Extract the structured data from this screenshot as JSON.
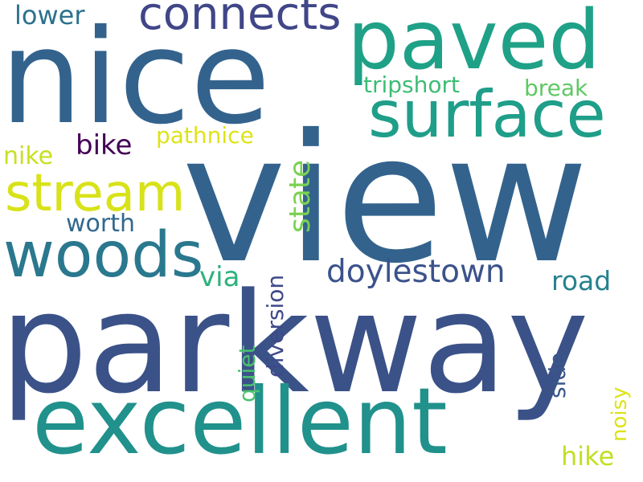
{
  "background": "#ffffff",
  "words": [
    {
      "text": "view",
      "color": "#33638d",
      "orientation": "horizontal"
    },
    {
      "text": "parkway",
      "color": "#3b5288",
      "orientation": "horizontal"
    },
    {
      "text": "nice",
      "color": "#33638d",
      "orientation": "horizontal"
    },
    {
      "text": "excellent",
      "color": "#21918c",
      "orientation": "horizontal"
    },
    {
      "text": "paved",
      "color": "#1fa187",
      "orientation": "horizontal"
    },
    {
      "text": "surface",
      "color": "#1f9e89",
      "orientation": "horizontal"
    },
    {
      "text": "woods",
      "color": "#2a788e",
      "orientation": "horizontal"
    },
    {
      "text": "stream",
      "color": "#d8e219",
      "orientation": "horizontal"
    },
    {
      "text": "connects",
      "color": "#404688",
      "orientation": "horizontal"
    },
    {
      "text": "doylestown",
      "color": "#3b528b",
      "orientation": "horizontal"
    },
    {
      "text": "bike",
      "color": "#440154",
      "orientation": "horizontal"
    },
    {
      "text": "lower",
      "color": "#2c728e",
      "orientation": "horizontal"
    },
    {
      "text": "road",
      "color": "#26828e",
      "orientation": "horizontal"
    },
    {
      "text": "hike",
      "color": "#c2df23",
      "orientation": "horizontal"
    },
    {
      "text": "via",
      "color": "#2db27d",
      "orientation": "horizontal"
    },
    {
      "text": "nike",
      "color": "#c8e020",
      "orientation": "horizontal"
    },
    {
      "text": "worth",
      "color": "#31688e",
      "orientation": "horizontal"
    },
    {
      "text": "pathnice",
      "color": "#dde318",
      "orientation": "horizontal"
    },
    {
      "text": "tripshort",
      "color": "#3dbc74",
      "orientation": "horizontal"
    },
    {
      "text": "break",
      "color": "#5ec962",
      "orientation": "horizontal"
    },
    {
      "text": "state",
      "color": "#7ad151",
      "orientation": "vertical"
    },
    {
      "text": "diversion",
      "color": "#3e4989",
      "orientation": "vertical"
    },
    {
      "text": "quiet",
      "color": "#4ac16d",
      "orientation": "vertical"
    },
    {
      "text": "side",
      "color": "#39568c",
      "orientation": "vertical"
    },
    {
      "text": "noisy",
      "color": "#dde318",
      "orientation": "vertical"
    }
  ]
}
